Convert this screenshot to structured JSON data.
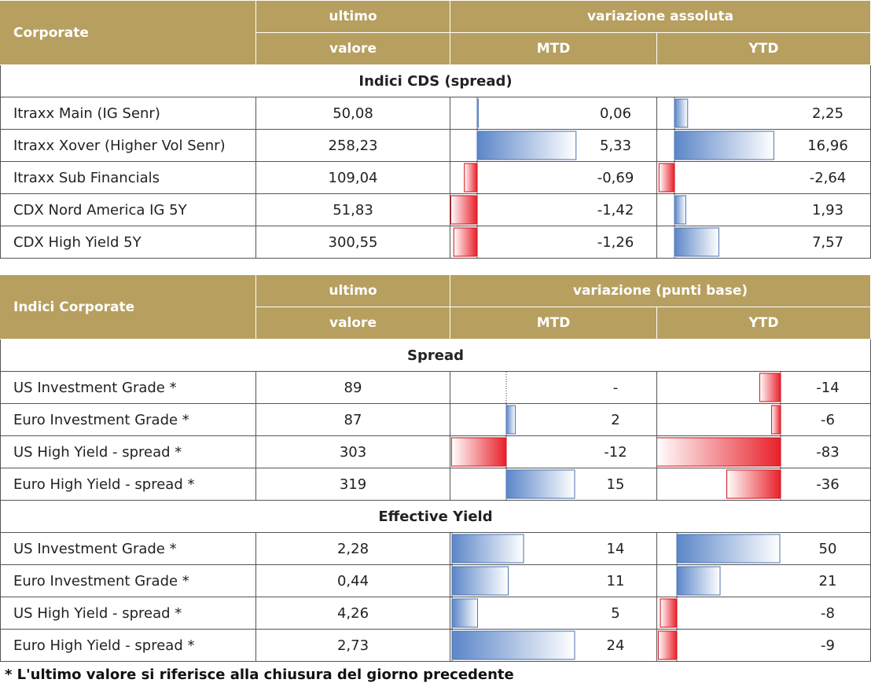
{
  "table1": {
    "header": {
      "label": "Corporate",
      "last_value_line1": "ultimo",
      "last_value_line2": "valore",
      "change": "variazione assoluta",
      "mtd": "MTD",
      "ytd": "YTD"
    },
    "sections": [
      {
        "title": "Indici CDS (spread)",
        "rows": [
          {
            "name": "Itraxx Main (IG Senr)",
            "value": "50,08",
            "mtd": "0,06",
            "ytd": "2,25",
            "mtd_num": 0.06,
            "ytd_num": 2.25
          },
          {
            "name": "Itraxx Xover (Higher Vol Senr)",
            "value": "258,23",
            "mtd": "5,33",
            "ytd": "16,96",
            "mtd_num": 5.33,
            "ytd_num": 16.96
          },
          {
            "name": "Itraxx Sub Financials",
            "value": "109,04",
            "mtd": "-0,69",
            "ytd": "-2,64",
            "mtd_num": -0.69,
            "ytd_num": -2.64
          },
          {
            "name": "CDX Nord America IG 5Y",
            "value": "51,83",
            "mtd": "-1,42",
            "ytd": "1,93",
            "mtd_num": -1.42,
            "ytd_num": 1.93
          },
          {
            "name": "CDX High Yield 5Y",
            "value": "300,55",
            "mtd": "-1,26",
            "ytd": "7,57",
            "mtd_num": -1.26,
            "ytd_num": 7.57
          }
        ]
      }
    ]
  },
  "table2": {
    "header": {
      "label": "Indici Corporate",
      "last_value_line1": "ultimo",
      "last_value_line2": "valore",
      "change": "variazione (punti base)",
      "mtd": "MTD",
      "ytd": "YTD"
    },
    "sections": [
      {
        "title": "Spread",
        "rows": [
          {
            "name": "US Investment Grade *",
            "value": "89",
            "mtd": "-",
            "ytd": "-14",
            "mtd_num": 0,
            "ytd_num": -14
          },
          {
            "name": "Euro Investment Grade *",
            "value": "87",
            "mtd": "2",
            "ytd": "-6",
            "mtd_num": 2,
            "ytd_num": -6
          },
          {
            "name": "US High Yield  - spread *",
            "value": "303",
            "mtd": "-12",
            "ytd": "-83",
            "mtd_num": -12,
            "ytd_num": -83
          },
          {
            "name": "Euro High Yield  - spread *",
            "value": "319",
            "mtd": "15",
            "ytd": "-36",
            "mtd_num": 15,
            "ytd_num": -36
          }
        ]
      },
      {
        "title": "Effective Yield",
        "rows": [
          {
            "name": "US Investment Grade *",
            "value": "2,28",
            "mtd": "14",
            "ytd": "50",
            "mtd_num": 14,
            "ytd_num": 50
          },
          {
            "name": "Euro Investment Grade *",
            "value": "0,44",
            "mtd": "11",
            "ytd": "21",
            "mtd_num": 11,
            "ytd_num": 21
          },
          {
            "name": "US High Yield  - spread *",
            "value": "4,26",
            "mtd": "5",
            "ytd": "-8",
            "mtd_num": 5,
            "ytd_num": -8
          },
          {
            "name": "Euro High Yield  - spread *",
            "value": "2,73",
            "mtd": "24",
            "ytd": "-9",
            "mtd_num": 24,
            "ytd_num": -9
          }
        ]
      }
    ]
  },
  "footnote": "* L'ultimo valore si riferisce alla chiusura del giorno precedente",
  "colors": {
    "header_bg": "#b79f5f",
    "positive_bar": "#5b86c8",
    "negative_bar": "#e8202a"
  }
}
